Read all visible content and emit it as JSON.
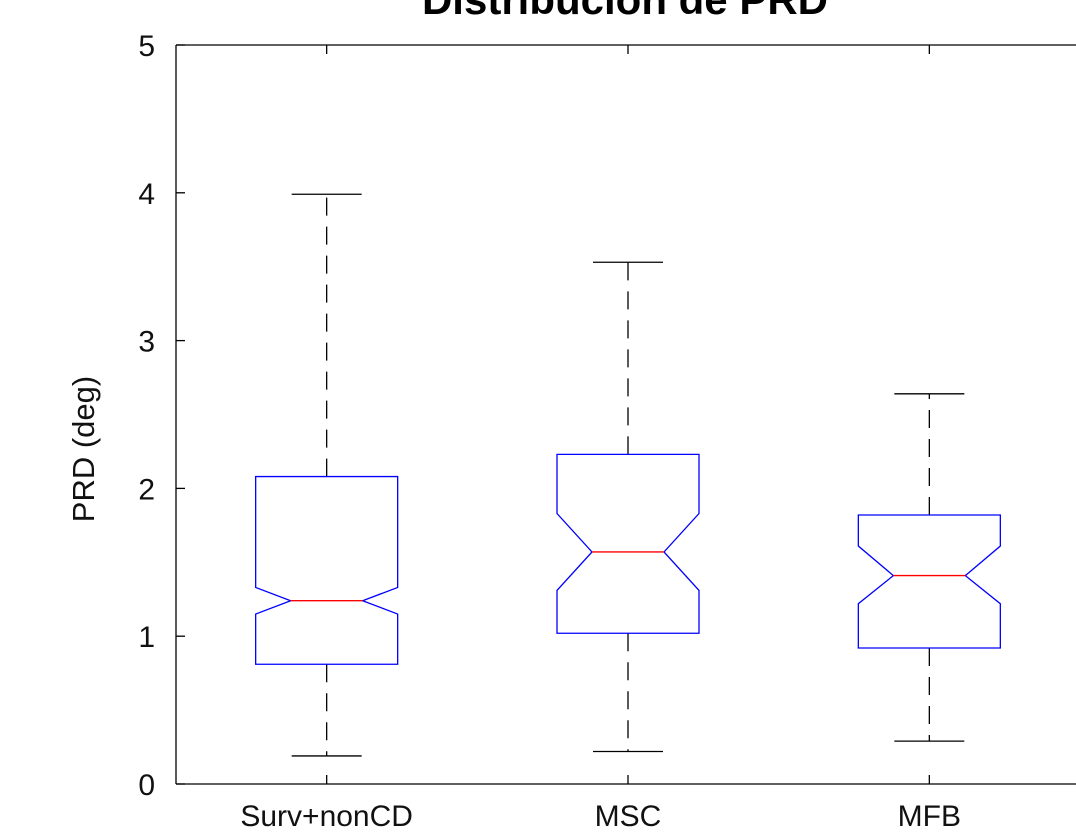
{
  "chart_data": {
    "type": "boxplot",
    "title": "Distribución de PRD",
    "xlabel": "",
    "ylabel": "PRD (deg)",
    "ylim": [
      0,
      5
    ],
    "yticks": [
      0,
      1,
      2,
      3,
      4,
      5
    ],
    "notched": true,
    "grid": false,
    "colors": {
      "box": "#0000ff",
      "median": "#ff0000",
      "whisker": "#000000"
    },
    "categories": [
      "Surv+nonCD",
      "MSC",
      "MFB"
    ],
    "boxes": [
      {
        "name": "Surv+nonCD",
        "whisker_low": 0.19,
        "q1": 0.81,
        "notch_low": 1.15,
        "median": 1.24,
        "notch_high": 1.33,
        "q3": 2.08,
        "whisker_high": 3.99
      },
      {
        "name": "MSC",
        "whisker_low": 0.22,
        "q1": 1.02,
        "notch_low": 1.31,
        "median": 1.57,
        "notch_high": 1.83,
        "q3": 2.23,
        "whisker_high": 3.53
      },
      {
        "name": "MFB",
        "whisker_low": 0.29,
        "q1": 0.92,
        "notch_low": 1.22,
        "median": 1.41,
        "notch_high": 1.61,
        "q3": 1.82,
        "whisker_high": 2.64
      }
    ]
  }
}
